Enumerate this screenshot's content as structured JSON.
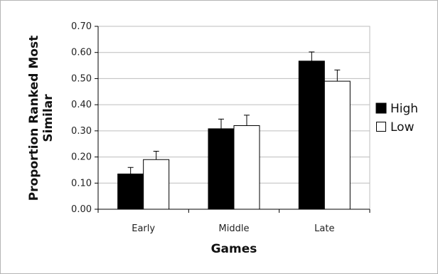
{
  "chart_data": {
    "type": "bar",
    "categories": [
      "Early",
      "Middle",
      "Late"
    ],
    "series": [
      {
        "name": "High",
        "color": "#000000",
        "values": [
          0.135,
          0.308,
          0.567
        ],
        "errors": [
          0.025,
          0.037,
          0.035
        ]
      },
      {
        "name": "Low",
        "color": "#ffffff",
        "values": [
          0.19,
          0.32,
          0.49
        ],
        "errors": [
          0.032,
          0.04,
          0.043
        ]
      }
    ],
    "ylabel_lines": [
      "Proportion Ranked Most",
      "Similar"
    ],
    "xlabel": "Games",
    "ylim": [
      0,
      0.7
    ],
    "y_ticks": [
      "0.00",
      "0.10",
      "0.20",
      "0.30",
      "0.40",
      "0.50",
      "0.60",
      "0.70"
    ],
    "grid": true,
    "legend_position": "right"
  }
}
